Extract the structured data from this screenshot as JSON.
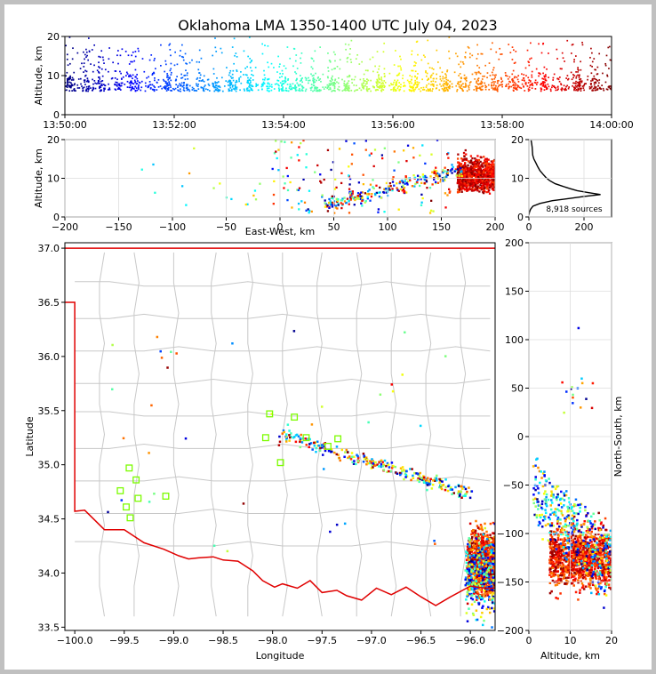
{
  "title": "Oklahoma LMA 1350-1400 UTC July 04, 2023",
  "colors": {
    "state_border": "#e00000",
    "county_lines": "#c8c8c8",
    "station_marker": "#7cfc00",
    "histogram": "#000000"
  },
  "chart_data": [
    {
      "type": "scatter",
      "name": "time-altitude",
      "ylabel": "Altitude, km",
      "ylim": [
        0,
        20
      ],
      "yticks": [
        "0",
        "10",
        "20"
      ],
      "xlim": [
        "13:50:00",
        "14:00:00"
      ],
      "xticks": [
        "13:50:00",
        "13:52:00",
        "13:54:00",
        "13:56:00",
        "13:58:00",
        "14:00:00"
      ],
      "color_by": "time"
    },
    {
      "type": "scatter",
      "name": "east-west-altitude",
      "xlabel": "East-West, km",
      "ylabel": "Altitude, km",
      "xlim": [
        -200,
        200
      ],
      "ylim": [
        0,
        20
      ],
      "xticks": [
        "−200",
        "−150",
        "−100",
        "−50",
        "0",
        "50",
        "100",
        "150",
        "200"
      ],
      "yticks": [
        "0",
        "10",
        "20"
      ]
    },
    {
      "type": "line",
      "name": "altitude-histogram",
      "xlim": [
        0,
        300
      ],
      "ylim": [
        0,
        20
      ],
      "xticks": [
        "0",
        "200"
      ],
      "yticks": [
        "0",
        "10",
        "20"
      ],
      "annotation": "8,918 sources",
      "profile": [
        [
          0,
          0.5
        ],
        [
          2,
          1.2
        ],
        [
          6,
          2
        ],
        [
          15,
          2.8
        ],
        [
          40,
          3.5
        ],
        [
          85,
          4.2
        ],
        [
          150,
          4.8
        ],
        [
          200,
          5.3
        ],
        [
          260,
          5.8
        ],
        [
          215,
          6.3
        ],
        [
          175,
          6.8
        ],
        [
          150,
          7.3
        ],
        [
          120,
          8
        ],
        [
          95,
          8.6
        ],
        [
          75,
          9.4
        ],
        [
          62,
          10.2
        ],
        [
          52,
          11
        ],
        [
          40,
          12
        ],
        [
          32,
          13
        ],
        [
          25,
          14
        ],
        [
          18,
          15
        ],
        [
          14,
          16
        ],
        [
          13,
          17
        ],
        [
          12,
          18
        ],
        [
          10,
          19
        ],
        [
          8,
          19.8
        ]
      ]
    },
    {
      "type": "scatter",
      "name": "plan-view",
      "xlabel": "Longitude",
      "ylabel": "Latitude",
      "xlim": [
        -100.1,
        -95.75
      ],
      "ylim": [
        33.47,
        37.05
      ],
      "xticks": [
        "−100.0",
        "−99.5",
        "−99.0",
        "−98.5",
        "−98.0",
        "−97.5",
        "−97.0",
        "−96.5",
        "−96.0"
      ],
      "yticks": [
        "33.5",
        "34.0",
        "34.5",
        "35.0",
        "35.5",
        "36.0",
        "36.5",
        "37.0"
      ],
      "stations": [
        [
          -99.45,
          34.97
        ],
        [
          -99.38,
          34.86
        ],
        [
          -99.54,
          34.76
        ],
        [
          -99.36,
          34.69
        ],
        [
          -99.08,
          34.71
        ],
        [
          -99.48,
          34.61
        ],
        [
          -99.44,
          34.51
        ],
        [
          -98.03,
          35.47
        ],
        [
          -97.78,
          35.44
        ],
        [
          -98.07,
          35.25
        ],
        [
          -97.66,
          35.25
        ],
        [
          -97.34,
          35.24
        ],
        [
          -97.44,
          35.17
        ],
        [
          -97.92,
          35.02
        ]
      ]
    },
    {
      "type": "scatter",
      "name": "altitude-north-south",
      "xlabel": "Altitude, km",
      "ylabel": "North-South, km",
      "xlim": [
        0,
        20
      ],
      "ylim": [
        -200,
        200
      ],
      "xticks": [
        "0",
        "10",
        "20"
      ],
      "yticks": [
        "−200",
        "−150",
        "−100",
        "−50",
        "0",
        "50",
        "100",
        "150",
        "200"
      ]
    }
  ]
}
